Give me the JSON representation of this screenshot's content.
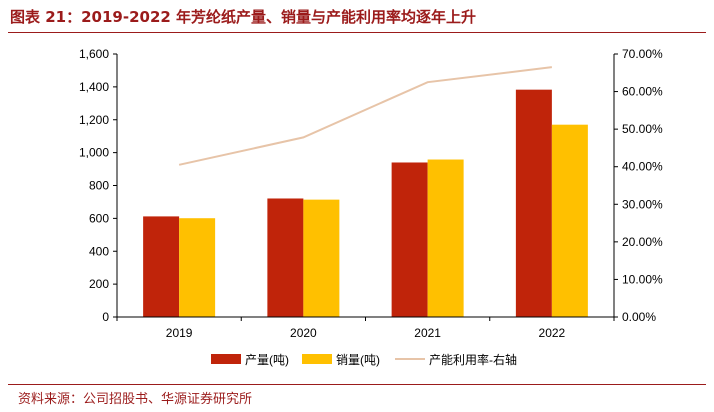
{
  "title": "图表 21：2019-2022 年芳纶纸产量、销量与产能利用率均逐年上升",
  "source": "资料来源：公司招股书、华源证券研究所",
  "colors": {
    "production": "#c0240a",
    "sales": "#ffc000",
    "utilization": "#e7c4a8",
    "title": "#9b1b1b"
  },
  "chart_data": {
    "type": "bar",
    "categories": [
      "2019",
      "2020",
      "2021",
      "2022"
    ],
    "series": [
      {
        "name": "产量(吨)",
        "type": "bar",
        "axis": "left",
        "values": [
          612,
          721,
          940,
          1383
        ]
      },
      {
        "name": "销量(吨)",
        "type": "bar",
        "axis": "left",
        "values": [
          601,
          714,
          958,
          1170
        ]
      },
      {
        "name": "产能利用率-右轴",
        "type": "line",
        "axis": "right",
        "values": [
          0.405,
          0.478,
          0.625,
          0.665
        ]
      }
    ],
    "left_axis": {
      "min": 0,
      "max": 1600,
      "ticks": [
        "0",
        "200",
        "400",
        "600",
        "800",
        "1,000",
        "1,200",
        "1,400",
        "1,600"
      ]
    },
    "right_axis": {
      "min": 0,
      "max": 0.7,
      "ticks": [
        "0.00%",
        "10.00%",
        "20.00%",
        "30.00%",
        "40.00%",
        "50.00%",
        "60.00%",
        "70.00%"
      ]
    },
    "legend": [
      "产量(吨)",
      "销量(吨)",
      "产能利用率-右轴"
    ],
    "legend_position": "bottom",
    "grid": false
  }
}
